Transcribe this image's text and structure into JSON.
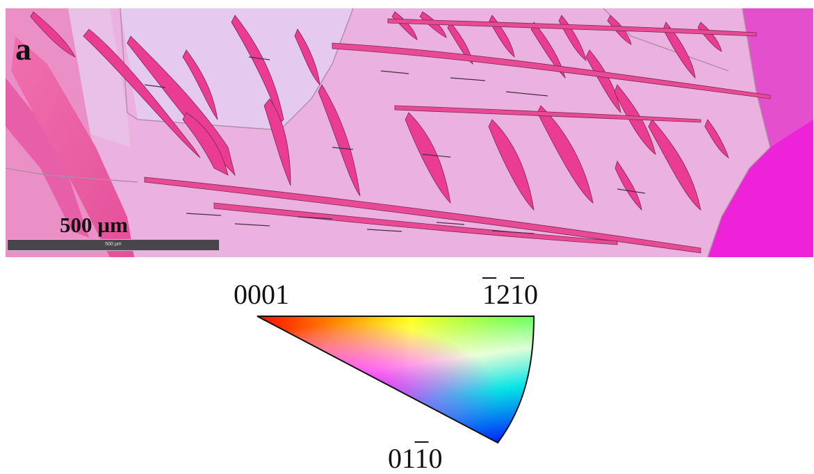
{
  "figure": {
    "panel_label": "a",
    "scale_bar": {
      "label": "500 µm",
      "inner_text": "500 µm"
    },
    "legend": {
      "corners": [
        {
          "name": "0001",
          "parts": [
            {
              "t": "0001",
              "overline": false
            }
          ],
          "color": "#ff0000"
        },
        {
          "name": "-12-10",
          "parts": [
            {
              "t": "1",
              "overline": true
            },
            {
              "t": "2",
              "overline": false
            },
            {
              "t": "1",
              "overline": true
            },
            {
              "t": "0",
              "overline": false
            }
          ],
          "color": "#00ff00"
        },
        {
          "name": "01-10",
          "parts": [
            {
              "t": "01",
              "overline": false
            },
            {
              "t": "1",
              "overline": true
            },
            {
              "t": "0",
              "overline": false
            }
          ],
          "color": "#0000ff"
        }
      ]
    },
    "colors": {
      "matrix": "#eab4e2",
      "matrix_light": "#e6c8ee",
      "lath": "#ea3c90",
      "lath_dark": "#c42a7a",
      "grain_right": "#e44fcd",
      "grain_right_bright": "#ee22d8"
    }
  }
}
